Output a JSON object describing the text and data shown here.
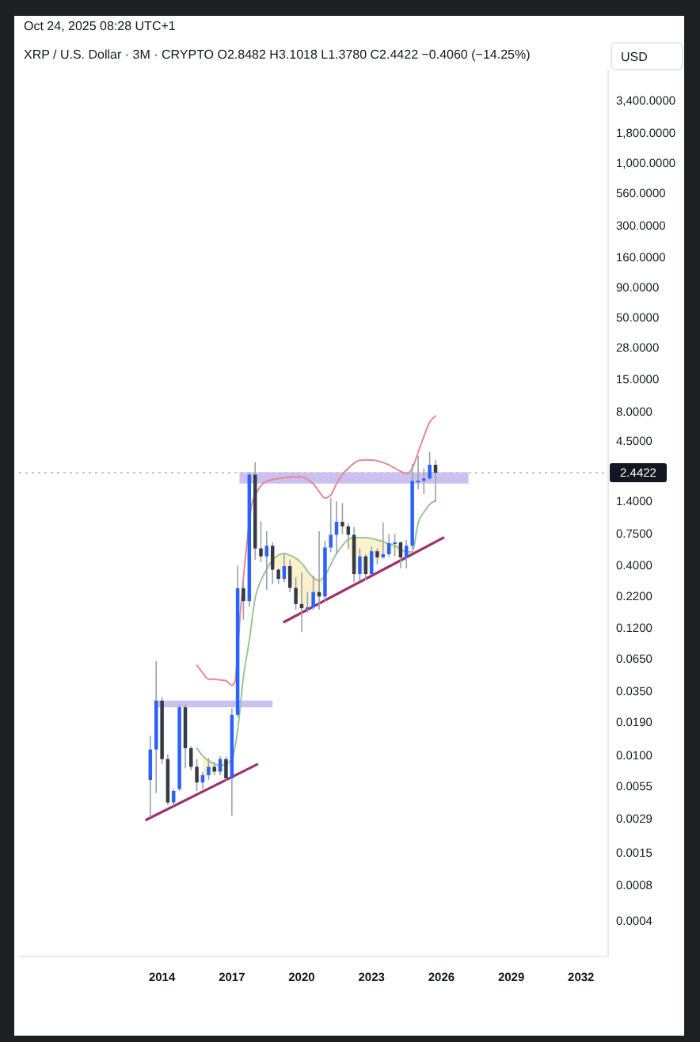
{
  "chart_data": {
    "type": "candlestick",
    "title": "XRP / U.S. Dollar · 3M · CRYPTO  O2.8482  H3.1018  L1.3780  C2.4422  −0.4060 (−14.25%)",
    "ylabel": "USD",
    "annotations": [
      "Oct 24, 2025 08:28 UTC+1"
    ],
    "log": true,
    "xlim": [
      "2007-11-10",
      "2033-03-01"
    ],
    "ylim": [
      0.0002,
      6200
    ],
    "xticks": [
      "2014",
      "2017",
      "2020",
      "2023",
      "2026",
      "2029",
      "2032"
    ],
    "yticks": [
      {
        "value": 3400,
        "label": "3,400.0000"
      },
      {
        "value": 1800,
        "label": "1,800.0000"
      },
      {
        "value": 1000,
        "label": "1,000.0000"
      },
      {
        "value": 560,
        "label": "560.0000"
      },
      {
        "value": 300,
        "label": "300.0000"
      },
      {
        "value": 160,
        "label": "160.0000"
      },
      {
        "value": 90,
        "label": "90.0000"
      },
      {
        "value": 50,
        "label": "50.0000"
      },
      {
        "value": 28,
        "label": "28.0000"
      },
      {
        "value": 15,
        "label": "15.0000"
      },
      {
        "value": 8,
        "label": "8.0000"
      },
      {
        "value": 4.5,
        "label": "4.5000"
      },
      {
        "value": 1.4,
        "label": "1.4000"
      },
      {
        "value": 0.75,
        "label": "0.7500"
      },
      {
        "value": 0.4,
        "label": "0.4000"
      },
      {
        "value": 0.22,
        "label": "0.2200"
      },
      {
        "value": 0.12,
        "label": "0.1200"
      },
      {
        "value": 0.065,
        "label": "0.0650"
      },
      {
        "value": 0.035,
        "label": "0.0350"
      },
      {
        "value": 0.019,
        "label": "0.0190"
      },
      {
        "value": 0.01,
        "label": "0.0100"
      },
      {
        "value": 0.0055,
        "label": "0.0055"
      },
      {
        "value": 0.0029,
        "label": "0.0029"
      },
      {
        "value": 0.0015,
        "label": "0.0015"
      },
      {
        "value": 0.0008,
        "label": "0.0008"
      },
      {
        "value": 0.0004,
        "label": "0.0004"
      }
    ],
    "ref_lines": [
      {
        "axis": "y",
        "value": 2.4422,
        "label": "2.4422",
        "color": "#b2b5be",
        "line_style": "dotted"
      }
    ],
    "x": [
      "2013-07",
      "2013-10",
      "2014-01",
      "2014-04",
      "2014-07",
      "2014-10",
      "2015-01",
      "2015-04",
      "2015-07",
      "2015-10",
      "2016-01",
      "2016-04",
      "2016-07",
      "2016-10",
      "2017-01",
      "2017-04",
      "2017-07",
      "2017-10",
      "2018-01",
      "2018-04",
      "2018-07",
      "2018-10",
      "2019-01",
      "2019-04",
      "2019-07",
      "2019-10",
      "2020-01",
      "2020-04",
      "2020-07",
      "2020-10",
      "2021-01",
      "2021-04",
      "2021-07",
      "2021-10",
      "2022-01",
      "2022-04",
      "2022-07",
      "2022-10",
      "2023-01",
      "2023-04",
      "2023-07",
      "2023-10",
      "2024-01",
      "2024-04",
      "2024-07",
      "2024-10",
      "2025-01",
      "2025-04",
      "2025-07",
      "2025-10"
    ],
    "ohlc": [
      [
        0.0062,
        0.0147,
        0.003,
        0.0112
      ],
      [
        0.0112,
        0.0625,
        0.0048,
        0.029
      ],
      [
        0.029,
        0.031,
        0.0085,
        0.0093
      ],
      [
        0.0093,
        0.0102,
        0.0038,
        0.004
      ],
      [
        0.004,
        0.0052,
        0.0037,
        0.005
      ],
      [
        0.0052,
        0.027,
        0.005,
        0.0255
      ],
      [
        0.0255,
        0.027,
        0.0078,
        0.0115
      ],
      [
        0.0115,
        0.012,
        0.0075,
        0.008
      ],
      [
        0.008,
        0.0093,
        0.005,
        0.0059
      ],
      [
        0.0059,
        0.0072,
        0.0052,
        0.0068
      ],
      [
        0.0068,
        0.0095,
        0.0062,
        0.008
      ],
      [
        0.008,
        0.0088,
        0.0068,
        0.0073
      ],
      [
        0.0073,
        0.0098,
        0.0068,
        0.0093
      ],
      [
        0.0093,
        0.0098,
        0.006,
        0.0064
      ],
      [
        0.0064,
        0.025,
        0.0031,
        0.022
      ],
      [
        0.022,
        0.4,
        0.021,
        0.258
      ],
      [
        0.258,
        0.29,
        0.14,
        0.201
      ],
      [
        0.201,
        2.45,
        0.18,
        2.35
      ],
      [
        2.35,
        3.0,
        0.45,
        0.56
      ],
      [
        0.56,
        0.95,
        0.43,
        0.48
      ],
      [
        0.48,
        0.78,
        0.25,
        0.59
      ],
      [
        0.59,
        0.63,
        0.28,
        0.37
      ],
      [
        0.37,
        0.38,
        0.28,
        0.31
      ],
      [
        0.31,
        0.5,
        0.29,
        0.397
      ],
      [
        0.397,
        0.45,
        0.24,
        0.26
      ],
      [
        0.26,
        0.32,
        0.17,
        0.19
      ],
      [
        0.19,
        0.35,
        0.11,
        0.175
      ],
      [
        0.175,
        0.24,
        0.16,
        0.178
      ],
      [
        0.178,
        0.33,
        0.17,
        0.24
      ],
      [
        0.24,
        0.78,
        0.17,
        0.22
      ],
      [
        0.22,
        0.65,
        0.2,
        0.57
      ],
      [
        0.57,
        1.49,
        0.52,
        0.73
      ],
      [
        0.73,
        1.4,
        0.5,
        0.94
      ],
      [
        0.94,
        1.35,
        0.74,
        0.86
      ],
      [
        0.86,
        0.91,
        0.55,
        0.73
      ],
      [
        0.73,
        0.85,
        0.29,
        0.34
      ],
      [
        0.34,
        0.56,
        0.3,
        0.48
      ],
      [
        0.48,
        0.5,
        0.3,
        0.34
      ],
      [
        0.34,
        0.58,
        0.34,
        0.53
      ],
      [
        0.53,
        0.56,
        0.41,
        0.47
      ],
      [
        0.47,
        0.93,
        0.46,
        0.5
      ],
      [
        0.5,
        0.74,
        0.48,
        0.62
      ],
      [
        0.62,
        0.74,
        0.48,
        0.63
      ],
      [
        0.63,
        0.64,
        0.38,
        0.47
      ],
      [
        0.47,
        0.66,
        0.38,
        0.59
      ],
      [
        0.59,
        2.9,
        0.55,
        2.08
      ],
      [
        2.08,
        3.4,
        1.77,
        2.09
      ],
      [
        2.09,
        2.65,
        1.61,
        2.18
      ],
      [
        2.18,
        3.66,
        2.1,
        2.85
      ],
      [
        2.8482,
        3.1018,
        1.378,
        2.4422
      ]
    ],
    "colors": [
      "#2962ff",
      "#2962ff",
      "#363a45",
      "#363a45",
      "#2962ff",
      "#2962ff",
      "#363a45",
      "#363a45",
      "#363a45",
      "#2962ff",
      "#2962ff",
      "#363a45",
      "#2962ff",
      "#363a45",
      "#2962ff",
      "#2962ff",
      "#363a45",
      "#2962ff",
      "#363a45",
      "#363a45",
      "#2962ff",
      "#363a45",
      "#363a45",
      "#2962ff",
      "#363a45",
      "#363a45",
      "#363a45",
      "#2962ff",
      "#2962ff",
      "#363a45",
      "#2962ff",
      "#2962ff",
      "#2962ff",
      "#363a45",
      "#363a45",
      "#363a45",
      "#2962ff",
      "#363a45",
      "#2962ff",
      "#363a45",
      "#2962ff",
      "#2962ff",
      "#2962ff",
      "#363a45",
      "#2962ff",
      "#2962ff",
      "#2962ff",
      "#2962ff",
      "#2962ff",
      "#363a45"
    ],
    "series": [
      {
        "type": "line",
        "x": [
          "2013-09",
          "2018-10"
        ],
        "values": [
          null,
          null
        ],
        "lower": [
          0.0255,
          0.0255
        ],
        "upper": [
          0.029,
          0.029
        ],
        "color": "#cbc0f0"
      },
      {
        "type": "line",
        "x": [
          "2017-05",
          "2027-03"
        ],
        "values": [
          null,
          null
        ],
        "lower": [
          1.98,
          1.98
        ],
        "upper": [
          2.46,
          2.46
        ],
        "color": "#cbc0f0"
      },
      {
        "type": "line",
        "x": [
          "2015-10",
          "2016-01",
          "2016-04",
          "2016-07",
          "2016-10",
          "2017-01",
          "2017-04",
          "2018-10",
          "2019-01",
          "2019-04",
          "2019-07",
          "2019-10",
          "2020-01",
          "2020-04",
          "2020-07",
          "2020-10",
          "2021-01",
          "2021-04",
          "2022-01",
          "2022-04",
          "2022-07",
          "2022-10",
          "2023-01",
          "2023-04",
          "2023-07",
          "2023-10",
          "2024-01",
          "2024-04",
          "2024-07",
          "2024-10"
        ],
        "values": [
          null,
          null,
          null,
          null,
          null,
          null,
          null,
          null,
          null,
          null,
          null,
          null,
          null,
          null,
          null,
          null,
          null,
          null,
          null,
          null,
          null,
          null,
          null,
          null,
          null,
          null,
          null,
          null,
          null,
          null
        ],
        "lower": [
          0.0068,
          0.0068,
          0.0072,
          0.0073,
          0.0075,
          0.009,
          null,
          0.44,
          0.37,
          0.36,
          0.3,
          0.24,
          0.19,
          0.178,
          0.2,
          0.24,
          0.32,
          null,
          0.66,
          0.4,
          0.36,
          0.36,
          0.4,
          0.47,
          0.49,
          0.52,
          0.56,
          0.5,
          0.5,
          0.52
        ],
        "upper": [
          0.0099,
          0.009,
          0.0085,
          0.0082,
          0.0085,
          0.0093,
          null,
          0.448,
          0.492,
          0.507,
          0.49,
          0.462,
          0.421,
          0.361,
          0.319,
          0.3,
          0.33,
          null,
          0.669,
          0.69,
          0.69,
          0.69,
          0.68,
          0.66,
          0.64,
          0.611,
          0.592,
          0.556,
          0.523,
          0.523
        ],
        "color": "#fbf1cc"
      },
      {
        "type": "line",
        "x": [
          "2015-07",
          "2015-10",
          "2016-01",
          "2016-04",
          "2016-07",
          "2016-10",
          "2017-01",
          "2017-04",
          "2017-07",
          "2017-10",
          "2018-01",
          "2018-04",
          "2018-07",
          "2018-10",
          "2019-01",
          "2019-04",
          "2019-07",
          "2019-10",
          "2020-01",
          "2020-04",
          "2020-07",
          "2020-10",
          "2021-01",
          "2021-04",
          "2021-07",
          "2021-10",
          "2022-01",
          "2022-04",
          "2022-07",
          "2022-10",
          "2023-01",
          "2023-04",
          "2023-07",
          "2023-10",
          "2024-01",
          "2024-04",
          "2024-07",
          "2024-10",
          "2025-01",
          "2025-04",
          "2025-07",
          "2025-10"
        ],
        "values": [
          0.0115,
          0.0099,
          0.009,
          0.0085,
          0.0082,
          0.0085,
          0.0093,
          0.0162,
          0.046,
          0.0933,
          0.214,
          0.3,
          0.373,
          0.448,
          0.492,
          0.507,
          0.49,
          0.462,
          0.421,
          0.361,
          0.319,
          0.3,
          0.33,
          0.409,
          0.507,
          0.592,
          0.669,
          0.69,
          0.69,
          0.69,
          0.68,
          0.66,
          0.64,
          0.611,
          0.592,
          0.556,
          0.523,
          0.523,
          0.92,
          1.13,
          1.32,
          1.42
        ],
        "color": "#9cc598"
      },
      {
        "type": "line",
        "x": [
          "2015-07",
          "2015-10",
          "2016-01",
          "2016-04",
          "2016-07",
          "2016-10",
          "2017-01",
          "2017-02-15",
          "2017-05-16",
          "2017-08-16",
          "2017-11-15",
          "2018-02-15",
          "2018-04",
          "2018-07",
          "2018-10",
          "2019-01",
          "2019-04",
          "2019-07",
          "2019-10",
          "2020-01",
          "2020-04",
          "2020-07",
          "2020-10",
          "2021-01",
          "2021-04",
          "2021-07",
          "2021-10",
          "2022-01",
          "2022-04",
          "2022-07",
          "2022-10",
          "2023-01",
          "2023-04",
          "2023-07",
          "2023-10",
          "2024-01",
          "2024-04",
          "2024-07",
          "2024-10",
          "2025-01",
          "2025-04",
          "2025-07",
          "2025-10"
        ],
        "values": [
          0.0577,
          0.0497,
          0.044,
          0.044,
          0.0433,
          0.0427,
          0.039,
          0.0415,
          0.166,
          0.559,
          1.36,
          1.74,
          1.9,
          2.06,
          2.14,
          2.18,
          2.22,
          2.24,
          2.24,
          2.24,
          2.14,
          1.97,
          1.69,
          1.49,
          1.58,
          1.97,
          2.36,
          2.66,
          2.93,
          3.11,
          3.13,
          3.13,
          3.07,
          2.98,
          2.84,
          2.66,
          2.51,
          2.4,
          2.66,
          3.63,
          4.94,
          6.52,
          7.37
        ],
        "color": "#e48a90"
      },
      {
        "type": "line",
        "x": [
          "2013-05",
          "2018-02"
        ],
        "values": [
          0.00286,
          0.00839
        ],
        "color": "#a0306e"
      },
      {
        "type": "line",
        "x": [
          "2019-04",
          "2026-02"
        ],
        "values": [
          0.134,
          0.689
        ],
        "color": "#a0306e"
      }
    ]
  }
}
